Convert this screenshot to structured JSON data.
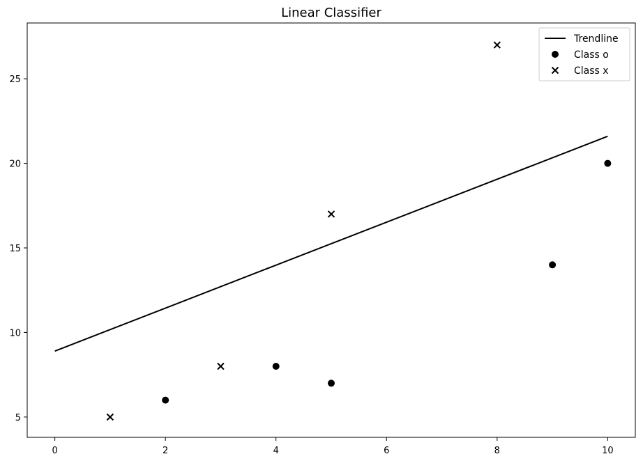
{
  "chart_data": {
    "type": "scatter",
    "title": "Linear Classifier",
    "xlabel": "",
    "ylabel": "",
    "xlim": [
      -0.5,
      10.5
    ],
    "ylim": [
      3.8,
      28.3
    ],
    "xticks": [
      0,
      2,
      4,
      6,
      8,
      10
    ],
    "yticks": [
      5,
      10,
      15,
      20,
      25
    ],
    "grid": false,
    "legend_position": "top-right",
    "series": [
      {
        "name": "Trendline",
        "kind": "line",
        "color": "#000000",
        "points": [
          [
            0,
            8.9
          ],
          [
            10,
            21.6
          ]
        ]
      },
      {
        "name": "Class o",
        "kind": "scatter",
        "marker": "circle",
        "color": "#000000",
        "points": [
          [
            2,
            6
          ],
          [
            4,
            8
          ],
          [
            5,
            7
          ],
          [
            9,
            14
          ],
          [
            10,
            20
          ]
        ]
      },
      {
        "name": "Class x",
        "kind": "scatter",
        "marker": "x",
        "color": "#000000",
        "points": [
          [
            1,
            5
          ],
          [
            3,
            8
          ],
          [
            5,
            17
          ],
          [
            8,
            27
          ]
        ]
      }
    ]
  }
}
